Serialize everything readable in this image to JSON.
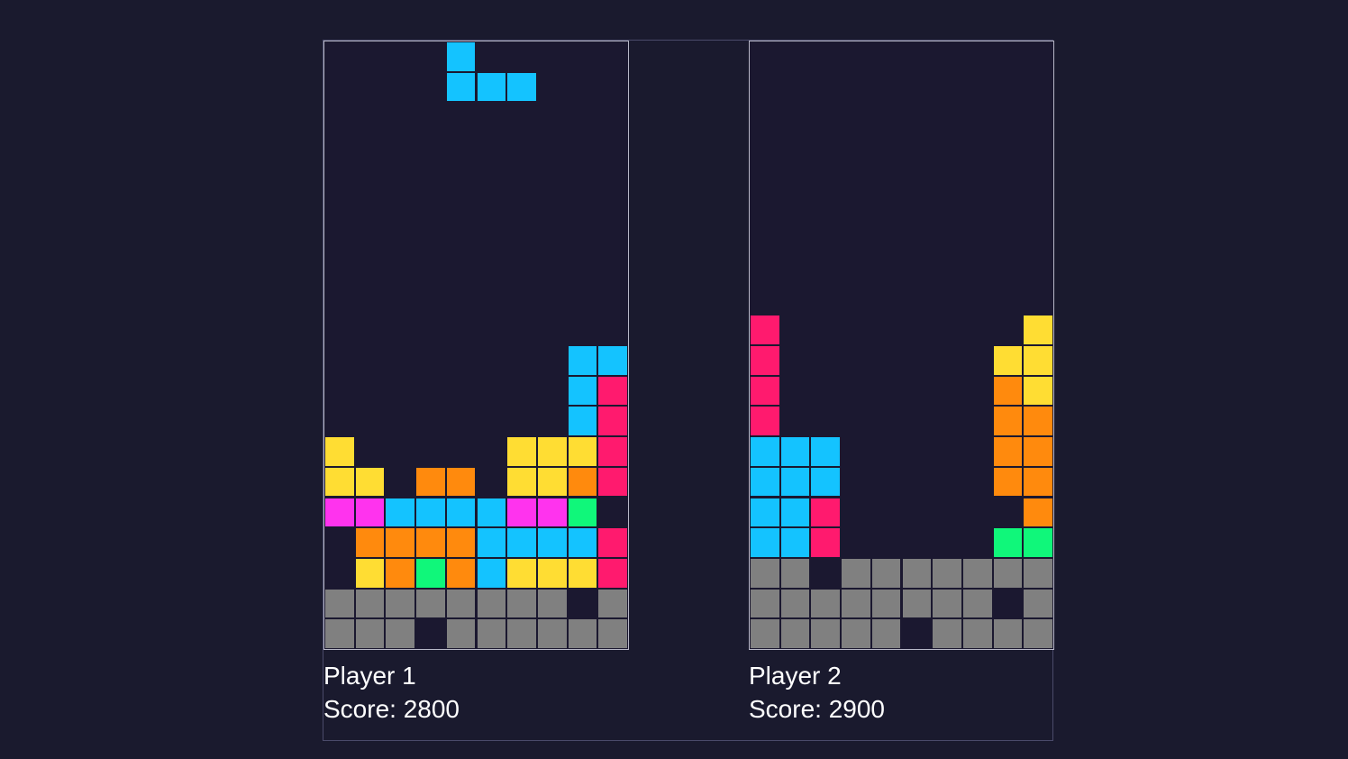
{
  "colors": {
    "background": "#1a1a2e",
    "board": "#1b1830",
    "palette": {
      "I": "#14c3ff",
      "O": "#ffdd33",
      "L": "#ff8a0d",
      "Z": "#ff1a6e",
      "T": "#ff33ee",
      "S": "#10f77a",
      "G": "#808080"
    }
  },
  "players": [
    {
      "name": "Player 1",
      "score_text": "Score: 2800",
      "score": 2800,
      "active_piece": {
        "type": "J",
        "color": "I",
        "cells": [
          [
            0,
            4
          ],
          [
            1,
            4
          ],
          [
            1,
            5
          ],
          [
            1,
            6
          ]
        ]
      },
      "grid": [
        "..........",
        "..........",
        "..........",
        "..........",
        "..........",
        "..........",
        "..........",
        "..........",
        "..........",
        "..........",
        "........II",
        "........IZ",
        "........IZ",
        "O.....OOOZ",
        "OO.LL.OOLZ",
        "TTIIIITTS.",
        ".LLLLIIIIZ",
        ".OLSLIOOOZ",
        "GGGGGGGG.G",
        "GGG.GGGGGG"
      ]
    },
    {
      "name": "Player 2",
      "score_text": "Score: 2900",
      "score": 2900,
      "active_piece": null,
      "grid": [
        "..........",
        "..........",
        "..........",
        "..........",
        "..........",
        "..........",
        "..........",
        "..........",
        "..........",
        "Z........O",
        "Z.......OO",
        "Z.......LO",
        "Z.......LL",
        "III.....LL",
        "III.....LL",
        "IIZ......L",
        "IIZ.....SS",
        "GG.GGGGGGG",
        "GGGGGGGG.G",
        "GGGGG.GGGG"
      ]
    }
  ]
}
